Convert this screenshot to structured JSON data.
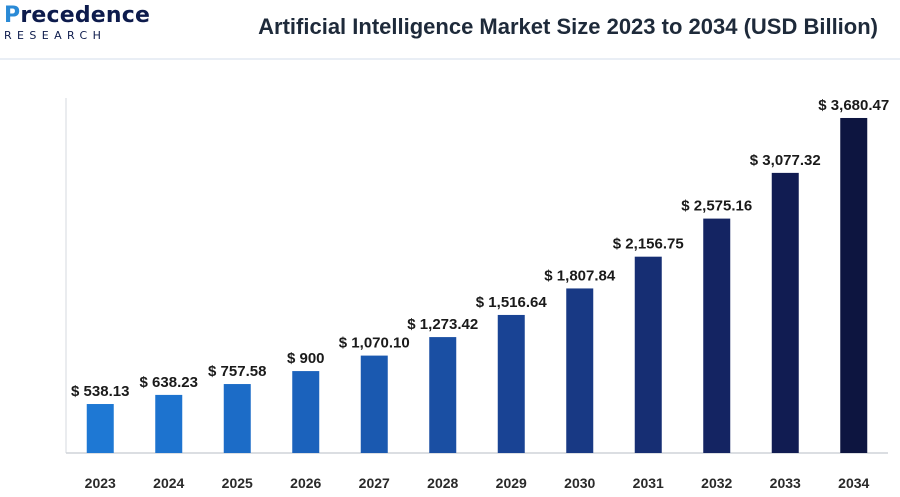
{
  "logo": {
    "main_prefix": "P",
    "main_rest": "recedence",
    "sub": "RESEARCH"
  },
  "chart_data": {
    "type": "bar",
    "title": "Artificial Intelligence Market Size 2023 to 2034 (USD Billion)",
    "xlabel": "",
    "ylabel": "",
    "categories": [
      "2023",
      "2024",
      "2025",
      "2026",
      "2027",
      "2028",
      "2029",
      "2030",
      "2031",
      "2032",
      "2033",
      "2034"
    ],
    "values": [
      538.13,
      638.23,
      757.58,
      900,
      1070.1,
      1273.42,
      1516.64,
      1807.84,
      2156.75,
      2575.16,
      3077.32,
      3680.47
    ],
    "value_labels": [
      "$ 538.13",
      "$ 638.23",
      "$ 757.58",
      "$ 900",
      "$ 1,070.10",
      "$ 1,273.42",
      "$ 1,516.64",
      "$ 1,807.84",
      "$ 2,156.75",
      "$ 2,575.16",
      "$ 3,077.32",
      "$ 3,680.47"
    ],
    "colors": [
      "#1e78d4",
      "#1d73cf",
      "#1c6cc7",
      "#1b62bc",
      "#1a59b0",
      "#1a4fa3",
      "#194394",
      "#183984",
      "#162e73",
      "#142462",
      "#111c52",
      "#0d1540"
    ],
    "ylim": [
      0,
      3900
    ],
    "grid": false,
    "legend": "none"
  }
}
